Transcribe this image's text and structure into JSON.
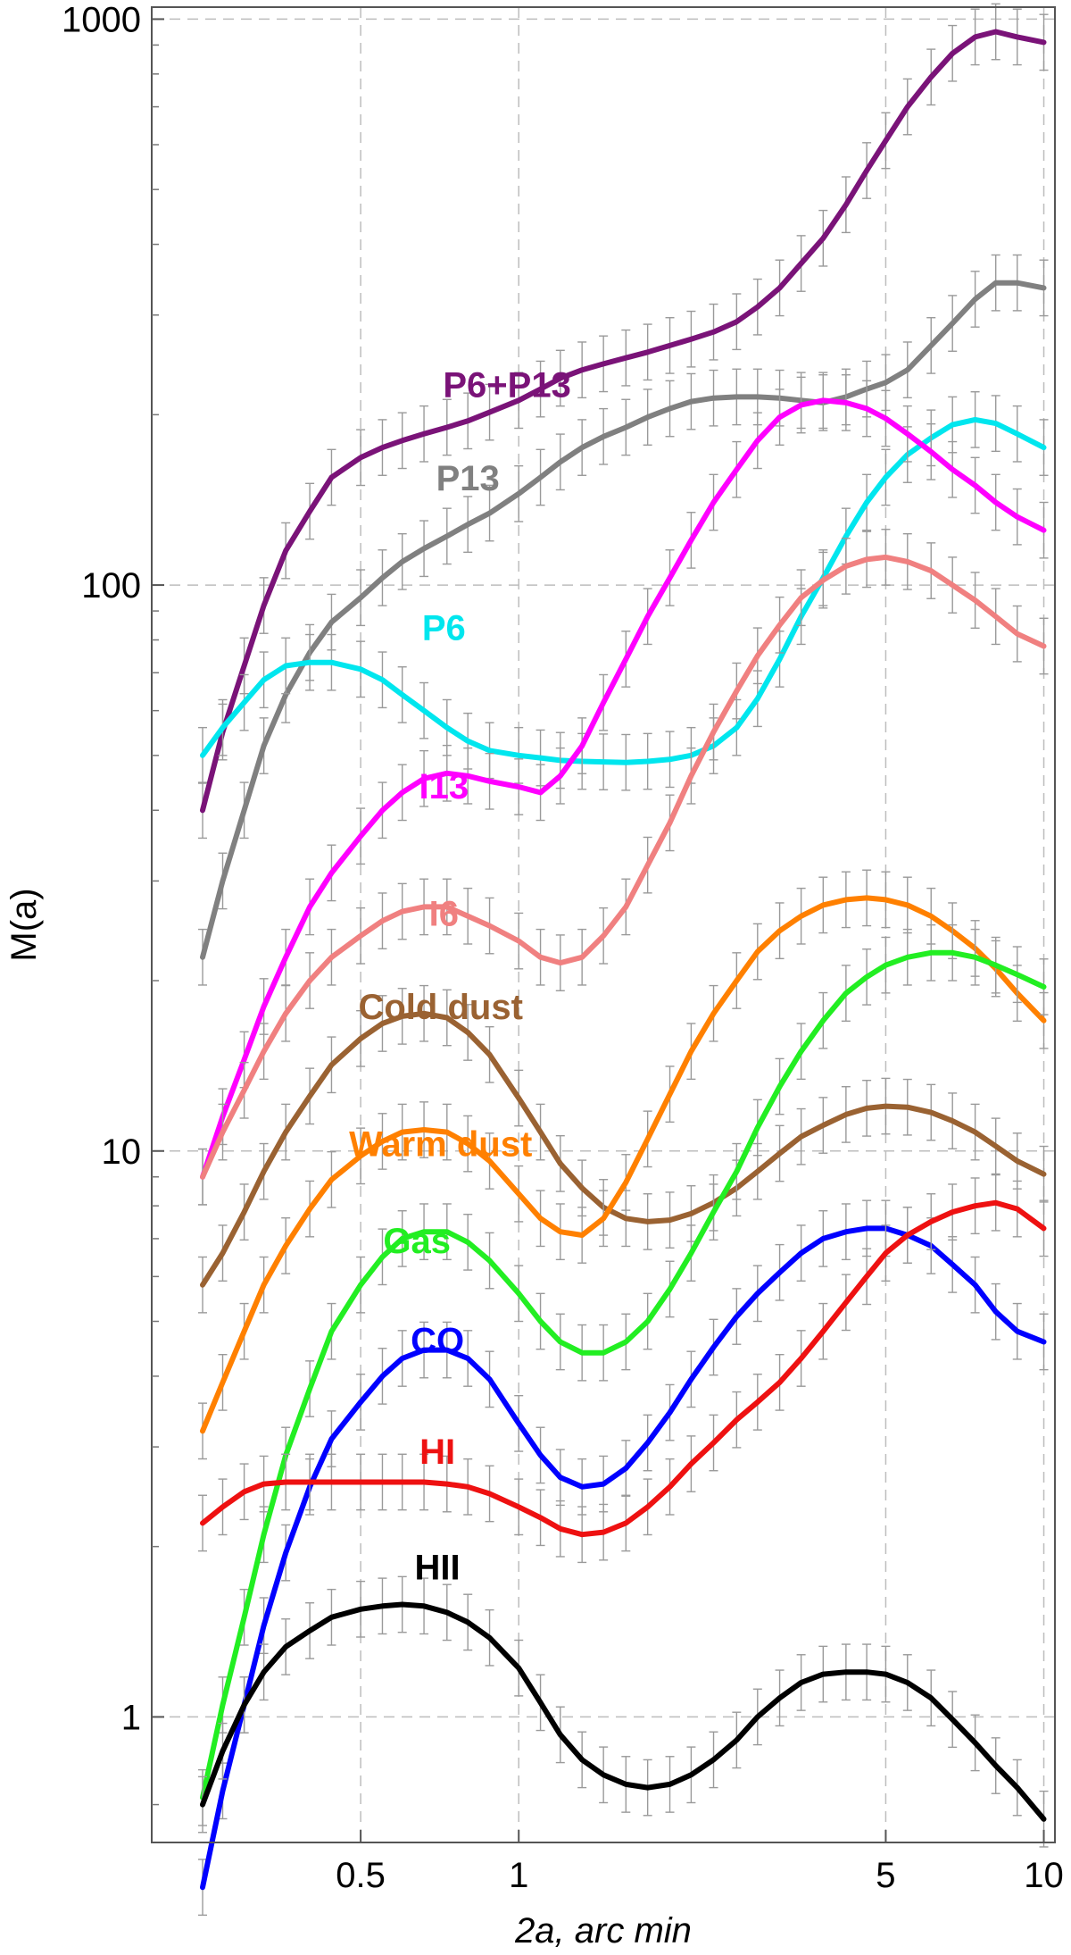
{
  "chart_data": {
    "type": "line",
    "title": "",
    "xlabel": "2a, arc min",
    "ylabel": "M(a)",
    "xscale": "log",
    "yscale": "log",
    "xlim": [
      0.2,
      10.5
    ],
    "ylim": [
      0.6,
      1050
    ],
    "grid": true,
    "error_bars": true,
    "x_ticks": [
      {
        "value": 0.5,
        "label": "0.5"
      },
      {
        "value": 1,
        "label": "1"
      },
      {
        "value": 5,
        "label": "5"
      },
      {
        "value": 10,
        "label": "10"
      }
    ],
    "y_ticks": [
      {
        "value": 1,
        "label": "1"
      },
      {
        "value": 10,
        "label": "10"
      },
      {
        "value": 100,
        "label": "100"
      },
      {
        "value": 1000,
        "label": "1000"
      }
    ],
    "x": [
      0.25,
      0.273,
      0.3,
      0.327,
      0.36,
      0.4,
      0.44,
      0.5,
      0.55,
      0.6,
      0.66,
      0.73,
      0.8,
      0.88,
      1.0,
      1.1,
      1.2,
      1.32,
      1.45,
      1.6,
      1.76,
      1.94,
      2.13,
      2.35,
      2.6,
      2.85,
      3.14,
      3.45,
      3.8,
      4.2,
      4.6,
      5.0,
      5.5,
      6.1,
      6.7,
      7.4,
      8.1,
      8.9,
      10.0
    ],
    "series": [
      {
        "name": "P6+P13",
        "color": "#7a1378",
        "values": [
          40,
          55,
          72,
          92,
          115,
          135,
          155,
          168,
          175,
          180,
          185,
          190,
          195,
          202,
          212,
          222,
          232,
          240,
          246,
          252,
          258,
          265,
          272,
          280,
          292,
          310,
          335,
          370,
          410,
          470,
          540,
          610,
          700,
          790,
          870,
          930,
          950,
          930,
          910
        ]
      },
      {
        "name": "P13",
        "color": "#808080",
        "values": [
          22,
          30,
          40,
          52,
          64,
          76,
          86,
          95,
          103,
          110,
          116,
          122,
          128,
          134,
          145,
          155,
          165,
          175,
          183,
          190,
          198,
          205,
          211,
          214,
          215,
          215,
          214,
          212,
          210,
          215,
          222,
          228,
          240,
          265,
          290,
          320,
          342,
          342,
          335
        ]
      },
      {
        "name": "P6",
        "color": "#00e6ee",
        "values": [
          50,
          56,
          62,
          68,
          72,
          73,
          73,
          71,
          68,
          64,
          60,
          56,
          53,
          51,
          50,
          49.5,
          49,
          48.8,
          48.7,
          48.6,
          48.8,
          49.2,
          50,
          52,
          56,
          63,
          74,
          88,
          103,
          122,
          140,
          155,
          170,
          182,
          192,
          196,
          193,
          185,
          175
        ]
      },
      {
        "name": "I13",
        "color": "#ff00ff",
        "values": [
          9,
          11.5,
          14.5,
          18,
          22,
          27,
          31,
          36,
          40,
          43,
          45.5,
          46.5,
          46,
          45,
          44,
          43,
          46,
          52,
          62,
          74,
          88,
          103,
          120,
          140,
          160,
          180,
          198,
          208,
          212,
          210,
          205,
          197,
          185,
          172,
          160,
          150,
          140,
          132,
          125
        ]
      },
      {
        "name": "I6",
        "color": "#f08080",
        "values": [
          9,
          10.8,
          12.8,
          15,
          17.5,
          20,
          22,
          24,
          25.5,
          26.5,
          27,
          27,
          26,
          25,
          23.5,
          22,
          21.5,
          22,
          24,
          27,
          32,
          38,
          46,
          55,
          65,
          75,
          85,
          95,
          102,
          108,
          111,
          112,
          110,
          106,
          100,
          94,
          88,
          82,
          78
        ]
      },
      {
        "name": "Cold dust",
        "color": "#9a6232",
        "values": [
          5.8,
          6.6,
          7.8,
          9.2,
          10.8,
          12.5,
          14.2,
          15.8,
          16.8,
          17.3,
          17.5,
          17.2,
          16.2,
          14.8,
          12.4,
          10.8,
          9.5,
          8.6,
          7.95,
          7.6,
          7.5,
          7.55,
          7.75,
          8.1,
          8.6,
          9.2,
          9.9,
          10.6,
          11.1,
          11.6,
          11.9,
          12.0,
          11.95,
          11.7,
          11.3,
          10.8,
          10.2,
          9.6,
          9.1
        ]
      },
      {
        "name": "Warm dust",
        "color": "#ff8000",
        "values": [
          3.2,
          3.9,
          4.8,
          5.8,
          6.8,
          7.9,
          8.9,
          9.8,
          10.4,
          10.8,
          10.9,
          10.8,
          10.3,
          9.6,
          8.4,
          7.6,
          7.2,
          7.1,
          7.6,
          8.8,
          10.5,
          12.6,
          15,
          17.5,
          20,
          22.5,
          24.5,
          26,
          27.2,
          27.8,
          28,
          27.8,
          27.2,
          26,
          24.5,
          22.8,
          21,
          19,
          17
        ]
      },
      {
        "name": "Gas",
        "color": "#22ee22",
        "values": [
          0.72,
          1.05,
          1.5,
          2.1,
          2.9,
          3.8,
          4.8,
          5.8,
          6.5,
          7.0,
          7.2,
          7.2,
          6.9,
          6.4,
          5.6,
          5.0,
          4.6,
          4.4,
          4.4,
          4.6,
          5.0,
          5.7,
          6.6,
          7.8,
          9.2,
          11,
          13,
          15,
          17,
          19,
          20.3,
          21.3,
          22,
          22.4,
          22.4,
          22,
          21.3,
          20.5,
          19.5
        ]
      },
      {
        "name": "CO",
        "color": "#0000ff",
        "values": [
          0.5,
          0.74,
          1.05,
          1.45,
          1.95,
          2.55,
          3.1,
          3.6,
          4.0,
          4.3,
          4.45,
          4.45,
          4.3,
          3.95,
          3.3,
          2.9,
          2.65,
          2.55,
          2.58,
          2.75,
          3.05,
          3.45,
          3.95,
          4.5,
          5.1,
          5.6,
          6.1,
          6.6,
          7.0,
          7.2,
          7.3,
          7.3,
          7.1,
          6.8,
          6.3,
          5.8,
          5.2,
          4.8,
          4.6
        ]
      },
      {
        "name": "HI",
        "color": "#ee1111",
        "values": [
          2.2,
          2.35,
          2.5,
          2.58,
          2.6,
          2.6,
          2.6,
          2.6,
          2.6,
          2.6,
          2.6,
          2.58,
          2.55,
          2.48,
          2.35,
          2.25,
          2.15,
          2.1,
          2.12,
          2.2,
          2.35,
          2.55,
          2.8,
          3.05,
          3.35,
          3.6,
          3.9,
          4.3,
          4.8,
          5.4,
          6.0,
          6.6,
          7.1,
          7.5,
          7.8,
          8.0,
          8.1,
          7.9,
          7.3
        ]
      },
      {
        "name": "HII",
        "color": "#000000",
        "values": [
          0.7,
          0.87,
          1.05,
          1.2,
          1.33,
          1.42,
          1.5,
          1.55,
          1.57,
          1.58,
          1.57,
          1.53,
          1.47,
          1.38,
          1.22,
          1.06,
          0.93,
          0.84,
          0.79,
          0.76,
          0.75,
          0.76,
          0.79,
          0.84,
          0.91,
          1.0,
          1.08,
          1.15,
          1.19,
          1.2,
          1.2,
          1.19,
          1.15,
          1.08,
          0.99,
          0.9,
          0.82,
          0.75,
          0.66
        ]
      }
    ],
    "labels": [
      {
        "text": "P6+P13",
        "series": "P6+P13",
        "x": 0.95,
        "y": 215
      },
      {
        "text": "P13",
        "series": "P13",
        "x": 0.8,
        "y": 147
      },
      {
        "text": "P6",
        "series": "P6",
        "x": 0.72,
        "y": 80
      },
      {
        "text": "I13",
        "series": "I13",
        "x": 0.72,
        "y": 42
      },
      {
        "text": "I6",
        "series": "I6",
        "x": 0.72,
        "y": 25
      },
      {
        "text": "Cold dust",
        "series": "Cold dust",
        "x": 0.71,
        "y": 17.1
      },
      {
        "text": "Warm dust",
        "series": "Warm dust",
        "x": 0.71,
        "y": 9.8
      },
      {
        "text": "Gas",
        "series": "Gas",
        "x": 0.64,
        "y": 6.6
      },
      {
        "text": "CO",
        "series": "CO",
        "x": 0.7,
        "y": 4.4
      },
      {
        "text": "HI",
        "series": "HI",
        "x": 0.7,
        "y": 2.8
      },
      {
        "text": "HII",
        "series": "HII",
        "x": 0.7,
        "y": 1.75
      }
    ]
  }
}
